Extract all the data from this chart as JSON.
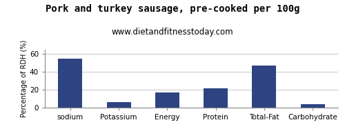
{
  "title": "Pork and turkey sausage, pre-cooked per 100g",
  "subtitle": "www.dietandfitnesstoday.com",
  "categories": [
    "sodium",
    "Potassium",
    "Energy",
    "Protein",
    "Total-Fat",
    "Carbohydrate"
  ],
  "values": [
    55,
    6,
    17,
    22,
    47,
    4
  ],
  "bar_color": "#2e4482",
  "ylabel": "Percentage of RDH (%)",
  "ylim": [
    0,
    65
  ],
  "yticks": [
    0,
    20,
    40,
    60
  ],
  "background_color": "#ffffff",
  "title_fontsize": 10,
  "subtitle_fontsize": 8.5,
  "ylabel_fontsize": 7,
  "xlabel_fontsize": 7.5,
  "tick_fontsize": 7.5,
  "grid_color": "#cccccc",
  "border_color": "#888888"
}
